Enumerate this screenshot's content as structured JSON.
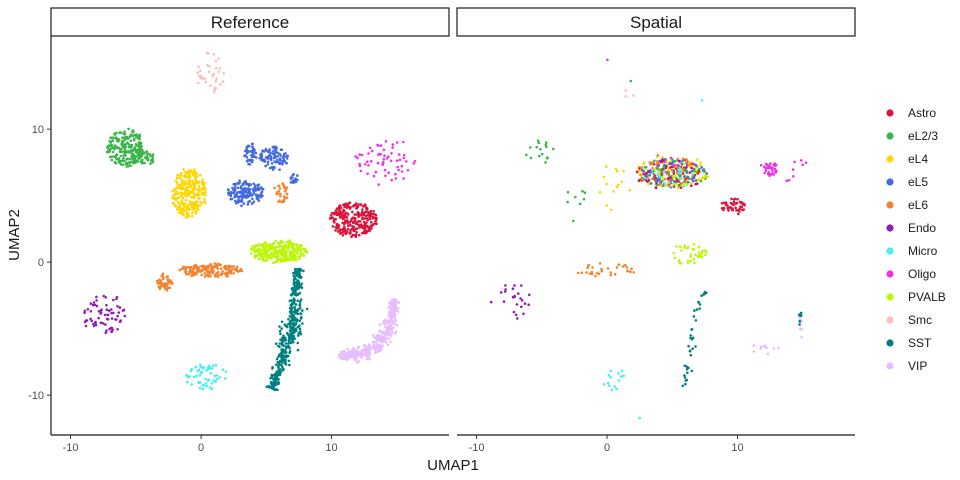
{
  "chart_data": {
    "type": "scatter",
    "xlabel": "UMAP1",
    "ylabel": "UMAP2",
    "xlim": [
      -11.5,
      19
    ],
    "ylim": [
      -13,
      17
    ],
    "x_ticks": [
      -10,
      0,
      10
    ],
    "y_ticks": [
      -10,
      0,
      10
    ],
    "x_tick_labels": [
      "-10",
      "0",
      "10"
    ],
    "y_tick_labels": [
      "-10",
      "0",
      "10"
    ],
    "grid": false,
    "legend_position": "right",
    "legend": [
      {
        "name": "Astro",
        "color": "#DC143C"
      },
      {
        "name": "eL2/3",
        "color": "#3CB44B"
      },
      {
        "name": "eL4",
        "color": "#FFD700"
      },
      {
        "name": "eL5",
        "color": "#4169E1"
      },
      {
        "name": "eL6",
        "color": "#F58231"
      },
      {
        "name": "Endo",
        "color": "#911EB4"
      },
      {
        "name": "Micro",
        "color": "#46F0F0"
      },
      {
        "name": "Oligo",
        "color": "#F032E6"
      },
      {
        "name": "PVALB",
        "color": "#BCF60C"
      },
      {
        "name": "Smc",
        "color": "#FABEBE"
      },
      {
        "name": "SST",
        "color": "#008080"
      },
      {
        "name": "VIP",
        "color": "#E6BEFF"
      }
    ],
    "panels": [
      {
        "title": "Reference",
        "clusters": [
          {
            "type": "Astro",
            "shape": "blob",
            "cx": 11.7,
            "cy": 3.2,
            "rx": 1.8,
            "ry": 1.3,
            "n": 260
          },
          {
            "type": "eL2/3",
            "shape": "blob",
            "cx": -5.8,
            "cy": 8.6,
            "rx": 1.4,
            "ry": 1.4,
            "n": 220
          },
          {
            "type": "eL2/3",
            "shape": "blob",
            "cx": -4.3,
            "cy": 7.8,
            "rx": 0.8,
            "ry": 0.5,
            "n": 40
          },
          {
            "type": "eL4",
            "shape": "blob",
            "cx": -0.9,
            "cy": 5.2,
            "rx": 1.3,
            "ry": 1.9,
            "n": 260
          },
          {
            "type": "eL5",
            "shape": "blob",
            "cx": 3.4,
            "cy": 5.2,
            "rx": 1.4,
            "ry": 0.9,
            "n": 150
          },
          {
            "type": "eL5",
            "shape": "blob",
            "cx": 5.6,
            "cy": 7.8,
            "rx": 1.1,
            "ry": 0.9,
            "n": 90
          },
          {
            "type": "eL5",
            "shape": "blob",
            "cx": 3.8,
            "cy": 8.1,
            "rx": 0.4,
            "ry": 0.9,
            "n": 40
          },
          {
            "type": "eL5",
            "shape": "blob",
            "cx": 7.1,
            "cy": 6.3,
            "rx": 0.3,
            "ry": 0.5,
            "n": 15
          },
          {
            "type": "eL6",
            "shape": "blob",
            "cx": 0.8,
            "cy": -0.6,
            "rx": 2.4,
            "ry": 0.5,
            "n": 160
          },
          {
            "type": "eL6",
            "shape": "blob",
            "cx": -2.8,
            "cy": -1.5,
            "rx": 0.6,
            "ry": 0.6,
            "n": 50
          },
          {
            "type": "eL6",
            "shape": "blob",
            "cx": 6.1,
            "cy": 5.3,
            "rx": 0.6,
            "ry": 0.8,
            "n": 30
          },
          {
            "type": "Endo",
            "shape": "blob",
            "cx": -7.4,
            "cy": -3.9,
            "rx": 1.6,
            "ry": 1.6,
            "n": 70
          },
          {
            "type": "Micro",
            "shape": "blob",
            "cx": 0.4,
            "cy": -8.6,
            "rx": 1.6,
            "ry": 1.0,
            "n": 60
          },
          {
            "type": "Oligo",
            "shape": "blob",
            "cx": 14.2,
            "cy": 7.5,
            "rx": 2.4,
            "ry": 1.8,
            "n": 60
          },
          {
            "type": "PVALB",
            "shape": "blob",
            "cx": 5.9,
            "cy": 0.8,
            "rx": 2.2,
            "ry": 0.8,
            "n": 300
          },
          {
            "type": "Smc",
            "shape": "blob",
            "cx": 0.7,
            "cy": 14.2,
            "rx": 1.1,
            "ry": 1.6,
            "n": 35
          },
          {
            "type": "SST",
            "shape": "path",
            "pts": [
              [
                7.5,
                -0.5
              ],
              [
                7.3,
                -2.5
              ],
              [
                6.9,
                -5
              ],
              [
                6.3,
                -7.2
              ],
              [
                5.4,
                -9.6
              ]
            ],
            "width": 0.65,
            "n": 420
          },
          {
            "type": "VIP",
            "shape": "path",
            "pts": [
              [
                14.8,
                -2.8
              ],
              [
                14.6,
                -4.5
              ],
              [
                13.8,
                -6.0
              ],
              [
                12.3,
                -6.9
              ],
              [
                10.6,
                -7.1
              ]
            ],
            "width": 0.55,
            "n": 380
          }
        ]
      },
      {
        "title": "Spatial",
        "clusters": [
          {
            "type": "eL4",
            "shape": "blob",
            "cx": 5.0,
            "cy": 6.8,
            "rx": 2.8,
            "ry": 1.2,
            "n": 110
          },
          {
            "type": "Astro",
            "shape": "blob",
            "cx": 4.9,
            "cy": 6.6,
            "rx": 2.8,
            "ry": 1.2,
            "n": 80
          },
          {
            "type": "eL5",
            "shape": "blob",
            "cx": 5.1,
            "cy": 6.7,
            "rx": 2.6,
            "ry": 1.1,
            "n": 70
          },
          {
            "type": "eL2/3",
            "shape": "blob",
            "cx": 5.0,
            "cy": 6.7,
            "rx": 2.7,
            "ry": 1.1,
            "n": 45
          },
          {
            "type": "eL6",
            "shape": "blob",
            "cx": 4.6,
            "cy": 6.9,
            "rx": 2.4,
            "ry": 1.2,
            "n": 35
          },
          {
            "type": "PVALB",
            "shape": "blob",
            "cx": 5.2,
            "cy": 6.6,
            "rx": 2.4,
            "ry": 1.0,
            "n": 20
          },
          {
            "type": "Endo",
            "shape": "blob",
            "cx": 4.3,
            "cy": 6.8,
            "rx": 2.0,
            "ry": 1.0,
            "n": 12
          },
          {
            "type": "Micro",
            "shape": "blob",
            "cx": 5.3,
            "cy": 6.6,
            "rx": 2.0,
            "ry": 1.0,
            "n": 10
          },
          {
            "type": "Oligo",
            "shape": "blob",
            "cx": 5.0,
            "cy": 6.8,
            "rx": 2.0,
            "ry": 1.0,
            "n": 8
          },
          {
            "type": "Astro",
            "shape": "blob",
            "cx": 9.6,
            "cy": 4.2,
            "rx": 1.0,
            "ry": 0.6,
            "n": 45
          },
          {
            "type": "eL4",
            "shape": "blob",
            "cx": 0.4,
            "cy": 5.3,
            "rx": 1.4,
            "ry": 2.0,
            "n": 14
          },
          {
            "type": "eL2/3",
            "shape": "blob",
            "cx": -5.1,
            "cy": 8.3,
            "rx": 1.1,
            "ry": 0.9,
            "n": 16
          },
          {
            "type": "eL2/3",
            "shape": "blob",
            "cx": -2.3,
            "cy": 4.3,
            "rx": 0.9,
            "ry": 1.4,
            "n": 8
          },
          {
            "type": "eL6",
            "shape": "blob",
            "cx": -0.2,
            "cy": -0.6,
            "rx": 2.6,
            "ry": 0.5,
            "n": 32
          },
          {
            "type": "Endo",
            "shape": "blob",
            "cx": -7.2,
            "cy": -2.8,
            "rx": 1.7,
            "ry": 1.5,
            "n": 24
          },
          {
            "type": "PVALB",
            "shape": "blob",
            "cx": 6.2,
            "cy": 0.6,
            "rx": 1.5,
            "ry": 0.8,
            "n": 40
          },
          {
            "type": "Oligo",
            "shape": "blob",
            "cx": 12.5,
            "cy": 7.0,
            "rx": 0.8,
            "ry": 0.5,
            "n": 35
          },
          {
            "type": "Oligo",
            "shape": "blob",
            "cx": 14.5,
            "cy": 7.0,
            "rx": 1.2,
            "ry": 1.2,
            "n": 8
          },
          {
            "type": "SST",
            "shape": "path",
            "pts": [
              [
                7.5,
                -2.0
              ],
              [
                6.8,
                -4.0
              ],
              [
                6.3,
                -6.5
              ],
              [
                5.9,
                -9.4
              ]
            ],
            "width": 0.45,
            "n": 38
          },
          {
            "type": "VIP",
            "shape": "blob",
            "cx": 12.0,
            "cy": -6.6,
            "rx": 1.2,
            "ry": 0.6,
            "n": 10
          },
          {
            "type": "VIP",
            "shape": "blob",
            "cx": 14.8,
            "cy": -4.8,
            "rx": 0.15,
            "ry": 1.3,
            "n": 10
          },
          {
            "type": "SST",
            "shape": "blob",
            "cx": 14.8,
            "cy": -4.3,
            "rx": 0.15,
            "ry": 0.7,
            "n": 6
          },
          {
            "type": "Micro",
            "shape": "blob",
            "cx": 0.5,
            "cy": -8.8,
            "rx": 0.9,
            "ry": 0.9,
            "n": 14
          },
          {
            "type": "Smc",
            "shape": "blob",
            "cx": 1.4,
            "cy": 12.6,
            "rx": 0.6,
            "ry": 0.4,
            "n": 3
          },
          {
            "type": "Oligo",
            "shape": "blob",
            "cx": 0.0,
            "cy": 15.3,
            "rx": 0.05,
            "ry": 0.05,
            "n": 1
          },
          {
            "type": "eL2/3",
            "shape": "blob",
            "cx": 1.9,
            "cy": 13.7,
            "rx": 0.05,
            "ry": 0.05,
            "n": 1
          },
          {
            "type": "Micro",
            "shape": "blob",
            "cx": 7.3,
            "cy": 12.1,
            "rx": 0.05,
            "ry": 0.05,
            "n": 1
          },
          {
            "type": "Micro",
            "shape": "blob",
            "cx": 2.6,
            "cy": -11.7,
            "rx": 0.05,
            "ry": 0.05,
            "n": 1
          }
        ]
      }
    ]
  }
}
